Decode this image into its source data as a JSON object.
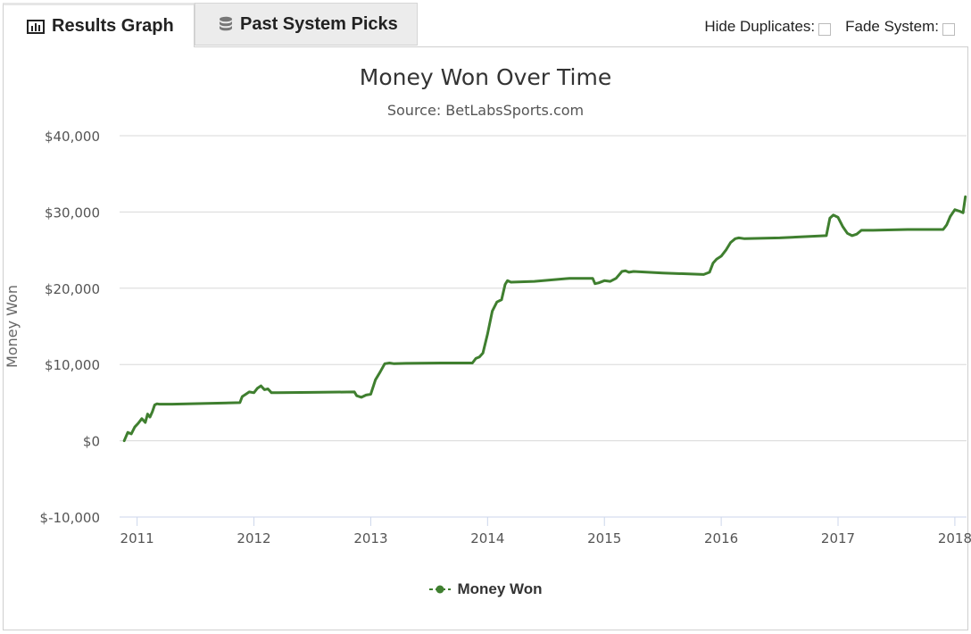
{
  "tabs": [
    {
      "label": "Results Graph",
      "icon": "bar-chart-icon",
      "active": true
    },
    {
      "label": "Past System Picks",
      "icon": "database-icon",
      "active": false
    }
  ],
  "options": {
    "hide_duplicates": "Hide Duplicates:",
    "fade_system": "Fade System:"
  },
  "colors": {
    "series": "#3f7f2f",
    "grid": "#d8d8d8",
    "axis": "#ccd6eb"
  },
  "chart_data": {
    "type": "line",
    "title": "Money Won Over Time",
    "subtitle": "Source: BetLabsSports.com",
    "ylabel": "Money Won",
    "xlabel": "",
    "ylim": [
      -10000,
      40000
    ],
    "yticks": [
      -10000,
      0,
      10000,
      20000,
      30000,
      40000
    ],
    "ytick_labels": [
      "$-10,000",
      "$0",
      "$10,000",
      "$20,000",
      "$30,000",
      "$40,000"
    ],
    "xticks": [
      2011,
      2012,
      2013,
      2014,
      2015,
      2016,
      2017,
      2018
    ],
    "xtick_labels": [
      "2011",
      "2012",
      "2013",
      "2014",
      "2015",
      "2016",
      "2017",
      "2018"
    ],
    "xlim": [
      2010.85,
      2018.1
    ],
    "grid": true,
    "legend_position": "bottom-center",
    "series": [
      {
        "name": "Money Won",
        "x": [
          2010.89,
          2010.92,
          2010.95,
          2010.98,
          2011.01,
          2011.04,
          2011.07,
          2011.09,
          2011.11,
          2011.13,
          2011.15,
          2011.17,
          2011.19,
          2011.3,
          2011.6,
          2011.88,
          2011.9,
          2011.93,
          2011.96,
          2012.0,
          2012.03,
          2012.06,
          2012.09,
          2012.12,
          2012.15,
          2012.2,
          2012.5,
          2012.86,
          2012.88,
          2012.92,
          2012.96,
          2013.0,
          2013.04,
          2013.08,
          2013.12,
          2013.16,
          2013.2,
          2013.3,
          2013.6,
          2013.87,
          2013.9,
          2013.93,
          2013.96,
          2014.0,
          2014.04,
          2014.08,
          2014.12,
          2014.15,
          2014.17,
          2014.2,
          2014.4,
          2014.7,
          2014.9,
          2014.92,
          2014.95,
          2015.0,
          2015.05,
          2015.1,
          2015.15,
          2015.18,
          2015.21,
          2015.25,
          2015.5,
          2015.85,
          2015.9,
          2015.93,
          2015.96,
          2016.0,
          2016.04,
          2016.08,
          2016.12,
          2016.15,
          2016.2,
          2016.5,
          2016.9,
          2016.93,
          2016.96,
          2017.0,
          2017.04,
          2017.08,
          2017.12,
          2017.16,
          2017.2,
          2017.3,
          2017.6,
          2017.9,
          2017.93,
          2017.96,
          2018.0,
          2018.04,
          2018.07,
          2018.09
        ],
        "y": [
          0,
          1100,
          900,
          1800,
          2300,
          2900,
          2400,
          3500,
          3100,
          3800,
          4700,
          4850,
          4800,
          4800,
          4900,
          5000,
          5800,
          6100,
          6400,
          6300,
          6900,
          7200,
          6700,
          6800,
          6300,
          6300,
          6350,
          6400,
          5900,
          5700,
          6000,
          6100,
          8000,
          9000,
          10100,
          10200,
          10100,
          10150,
          10200,
          10200,
          10800,
          11000,
          11500,
          14000,
          17000,
          18200,
          18500,
          20500,
          21000,
          20800,
          20900,
          21300,
          21300,
          20600,
          20700,
          21000,
          20900,
          21300,
          22200,
          22300,
          22100,
          22200,
          22000,
          21800,
          22100,
          23300,
          23800,
          24200,
          25000,
          26000,
          26500,
          26600,
          26500,
          26600,
          26900,
          29200,
          29600,
          29300,
          28100,
          27200,
          26900,
          27100,
          27600,
          27600,
          27700,
          27700,
          28300,
          29400,
          30300,
          30100,
          29900,
          32000
        ]
      }
    ]
  }
}
